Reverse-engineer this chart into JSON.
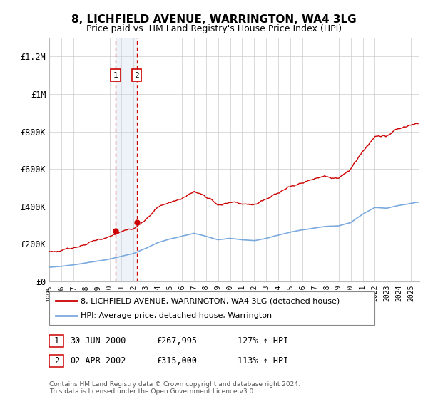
{
  "title": "8, LICHFIELD AVENUE, WARRINGTON, WA4 3LG",
  "subtitle": "Price paid vs. HM Land Registry's House Price Index (HPI)",
  "legend_line1": "8, LICHFIELD AVENUE, WARRINGTON, WA4 3LG (detached house)",
  "legend_line2": "HPI: Average price, detached house, Warrington",
  "transaction1_label": "1",
  "transaction1_date": "30-JUN-2000",
  "transaction1_price": "£267,995",
  "transaction1_hpi": "127% ↑ HPI",
  "transaction2_label": "2",
  "transaction2_date": "02-APR-2002",
  "transaction2_price": "£315,000",
  "transaction2_hpi": "113% ↑ HPI",
  "footnote": "Contains HM Land Registry data © Crown copyright and database right 2024.\nThis data is licensed under the Open Government Licence v3.0.",
  "red_color": "#cc0000",
  "blue_color": "#7aaadd",
  "highlight_fill": "#ddeeff",
  "marker1_date": 2000.5,
  "marker1_value": 267995,
  "marker2_date": 2002.25,
  "marker2_value": 315000,
  "xmin": 1995.0,
  "xmax": 2025.7,
  "ymin": 0,
  "ymax": 1300000,
  "yticks": [
    0,
    200000,
    400000,
    600000,
    800000,
    1000000,
    1200000
  ],
  "ylabels": [
    "£0",
    "£200K",
    "£400K",
    "£600K",
    "£800K",
    "£1M",
    "£1.2M"
  ]
}
